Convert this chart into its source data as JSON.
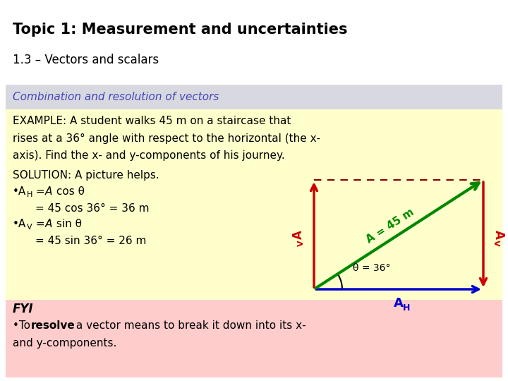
{
  "title_line1": "Topic 1: Measurement and uncertainties",
  "title_line2": "1.3 – Vectors and scalars",
  "section_header": "Combination and resolution of vectors",
  "section_header_color": "#4444bb",
  "section_bg": "#d8d8e0",
  "main_bg": "#ffffcc",
  "fyi_bg": "#ffcccc",
  "white_bg": "#ffffff",
  "diagram_green": "#008800",
  "diagram_red": "#cc0000",
  "diagram_blue": "#0000cc",
  "diagram_dashed": "#880000",
  "theta_degrees": 36,
  "title1_fontsize": 15,
  "title2_fontsize": 12,
  "header_fontsize": 11,
  "body_fontsize": 11
}
